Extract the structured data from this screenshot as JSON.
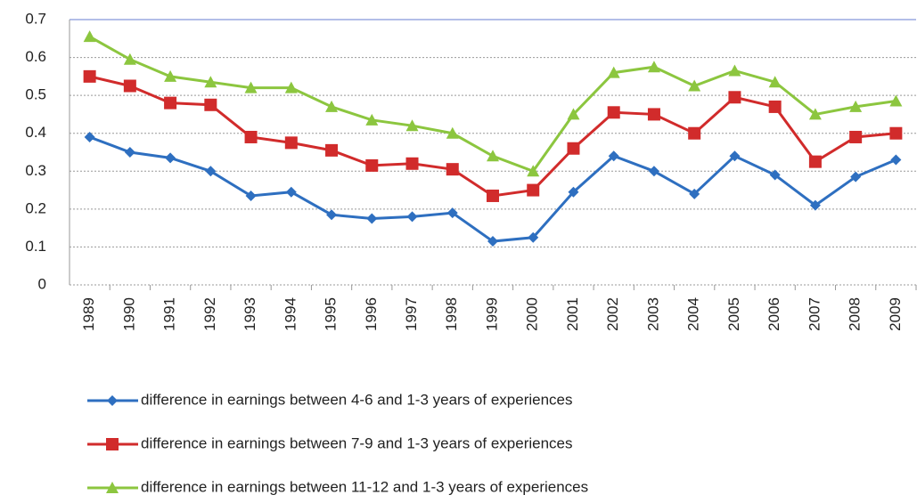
{
  "chart_data": {
    "type": "line",
    "categories": [
      "1989",
      "1990",
      "1991",
      "1992",
      "1993",
      "1994",
      "1995",
      "1996",
      "1997",
      "1998",
      "1999",
      "2000",
      "2001",
      "2002",
      "2003",
      "2004",
      "2005",
      "2006",
      "2007",
      "2008",
      "2009"
    ],
    "series": [
      {
        "name": "difference in earnings between 4-6 and 1-3 years of experiences",
        "color": "#2e6fc0",
        "marker": "diamond",
        "values": [
          0.39,
          0.35,
          0.335,
          0.3,
          0.235,
          0.245,
          0.185,
          0.175,
          0.18,
          0.19,
          0.115,
          0.125,
          0.245,
          0.34,
          0.3,
          0.24,
          0.34,
          0.29,
          0.21,
          0.285,
          0.33
        ]
      },
      {
        "name": "difference in earnings between 7-9 and 1-3 years of experiences",
        "color": "#d12b2b",
        "marker": "square",
        "values": [
          0.55,
          0.525,
          0.48,
          0.475,
          0.39,
          0.375,
          0.355,
          0.315,
          0.32,
          0.305,
          0.235,
          0.25,
          0.36,
          0.455,
          0.45,
          0.4,
          0.495,
          0.47,
          0.325,
          0.39,
          0.4
        ]
      },
      {
        "name": "difference in earnings between 11-12 and 1-3 years of experiences",
        "color": "#8cc63f",
        "marker": "triangle",
        "values": [
          0.655,
          0.595,
          0.55,
          0.535,
          0.52,
          0.52,
          0.47,
          0.435,
          0.42,
          0.4,
          0.34,
          0.3,
          0.45,
          0.56,
          0.575,
          0.525,
          0.565,
          0.535,
          0.45,
          0.47,
          0.485
        ]
      }
    ],
    "ylim": [
      0,
      0.7
    ],
    "yticks": [
      0,
      0.1,
      0.2,
      0.3,
      0.4,
      0.5,
      0.6,
      0.7
    ],
    "grid": true,
    "legend": "bottom"
  }
}
